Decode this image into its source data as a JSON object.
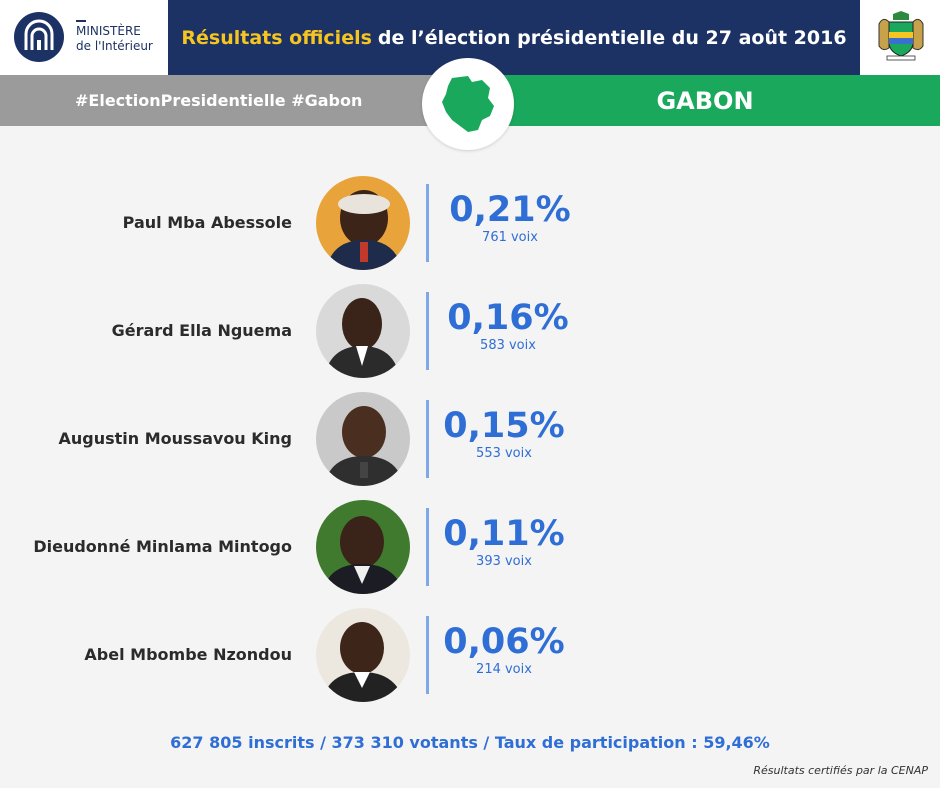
{
  "header": {
    "ministry_line1": "MINISTÈRE",
    "ministry_line2": "de l'Intérieur",
    "title_highlight": "Résultats officiels",
    "title_rest": "de l’élection présidentielle du 27 août 2016",
    "highlight_color": "#f7c520",
    "navy_color": "#1d3264"
  },
  "banner": {
    "hashtags": "#ElectionPresidentielle #Gabon",
    "country": "GABON",
    "green_color": "#1aa95c",
    "grey_color": "#9b9b9b"
  },
  "candidates": [
    {
      "name": "Paul Mba Abessole",
      "percent": "0,21%",
      "votes": "761 voix"
    },
    {
      "name": "Gérard Ella Nguema",
      "percent": "0,16%",
      "votes": "583 voix"
    },
    {
      "name": "Augustin Moussavou King",
      "percent": "0,15%",
      "votes": "553 voix"
    },
    {
      "name": "Dieudonné Minlama Mintogo",
      "percent": "0,11%",
      "votes": "393 voix"
    },
    {
      "name": "Abel Mbombe Nzondou",
      "percent": "0,06%",
      "votes": "214 voix"
    }
  ],
  "summary": "627 805 inscrits / 373 310 votants / Taux de participation : 59,46%",
  "footnote": "Résultats certifiés par la CENAP",
  "accent_color": "#2f6ed5"
}
